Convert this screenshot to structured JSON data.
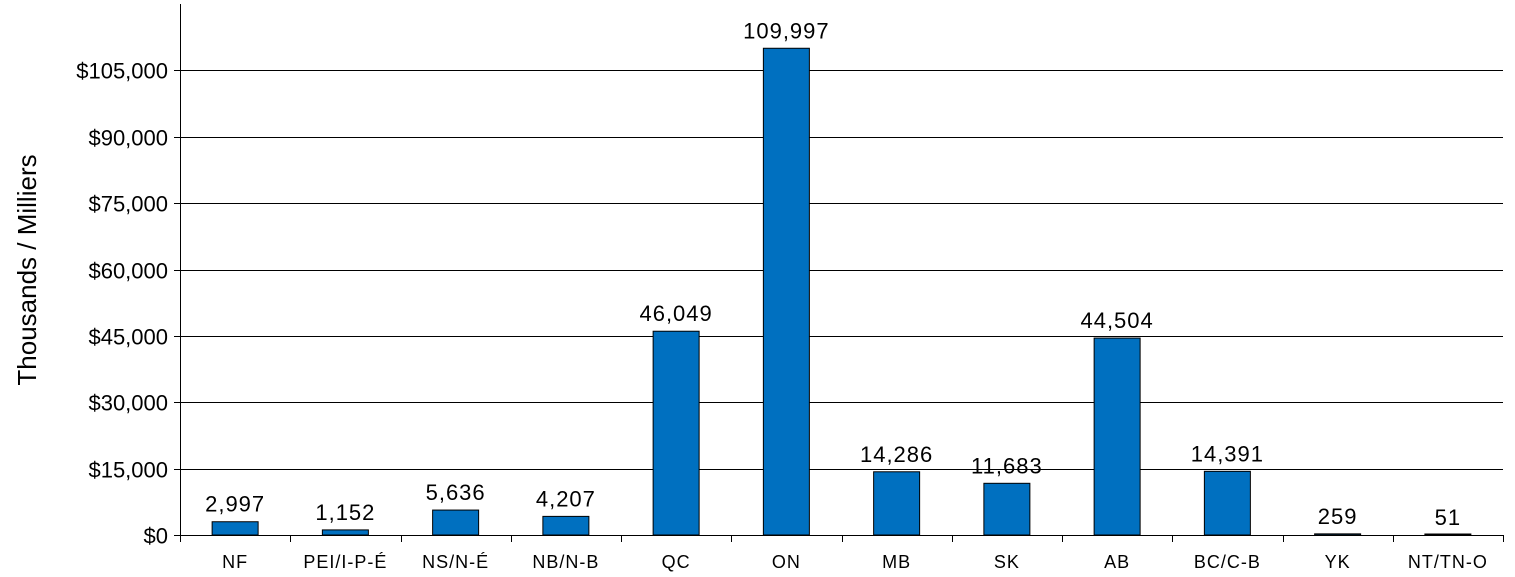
{
  "chart_data": {
    "type": "bar",
    "title": "",
    "xlabel": "",
    "ylabel": "Thousands / Milliers",
    "categories": [
      "NF",
      "PEI/I-P-É",
      "NS/N-É",
      "NB/N-B",
      "QC",
      "ON",
      "MB",
      "SK",
      "AB",
      "BC/C-B",
      "YK",
      "NT/TN-O"
    ],
    "values": [
      2997,
      1152,
      5636,
      4207,
      46049,
      109997,
      14286,
      11683,
      44504,
      14391,
      259,
      51
    ],
    "data_labels": [
      "2,997",
      "1,152",
      "5,636",
      "4,207",
      "46,049",
      "109,997",
      "14,286",
      "11,683",
      "44,504",
      "14,391",
      "259",
      "51"
    ],
    "ylim": [
      0,
      120000
    ],
    "yticks": [
      0,
      15000,
      30000,
      45000,
      60000,
      75000,
      90000,
      105000
    ],
    "ytick_labels": [
      "$0",
      "$15,000",
      "$30,000",
      "$45,000",
      "$60,000",
      "$75,000",
      "$90,000",
      "$105,000"
    ],
    "grid": true,
    "legend": "none",
    "bar_color": "#0070C0"
  }
}
